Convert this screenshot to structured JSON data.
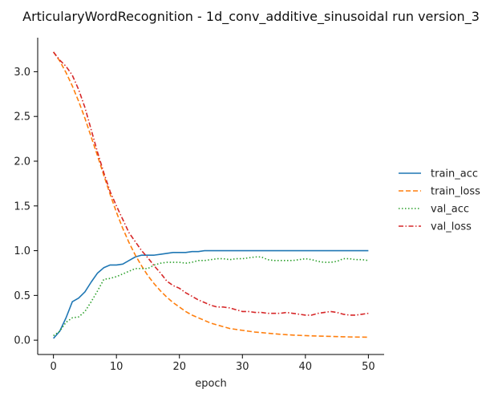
{
  "chart_data": {
    "type": "line",
    "title": "ArticularyWordRecognition - 1d_conv_additive_sinusoidal run version_3",
    "xlabel": "epoch",
    "ylabel": "",
    "xlim": [
      -2.5,
      52.5
    ],
    "ylim": [
      -0.16,
      3.38
    ],
    "x_ticks": [
      0,
      10,
      20,
      30,
      40,
      50
    ],
    "y_ticks": [
      0.0,
      0.5,
      1.0,
      1.5,
      2.0,
      2.5,
      3.0
    ],
    "grid": false,
    "legend_position": "right",
    "x": [
      0,
      1,
      2,
      3,
      4,
      5,
      6,
      7,
      8,
      9,
      10,
      11,
      12,
      13,
      14,
      15,
      16,
      17,
      18,
      19,
      20,
      21,
      22,
      23,
      24,
      25,
      26,
      27,
      28,
      29,
      30,
      31,
      32,
      33,
      34,
      35,
      36,
      37,
      38,
      39,
      40,
      41,
      42,
      43,
      44,
      45,
      46,
      47,
      48,
      49,
      50
    ],
    "series": [
      {
        "name": "train_acc",
        "color": "#1f77b4",
        "dash": "solid",
        "values": [
          0.02,
          0.1,
          0.25,
          0.43,
          0.47,
          0.54,
          0.65,
          0.75,
          0.81,
          0.84,
          0.84,
          0.85,
          0.89,
          0.93,
          0.95,
          0.95,
          0.95,
          0.96,
          0.97,
          0.98,
          0.98,
          0.98,
          0.99,
          0.99,
          1.0,
          1.0,
          1.0,
          1.0,
          1.0,
          1.0,
          1.0,
          1.0,
          1.0,
          1.0,
          1.0,
          1.0,
          1.0,
          1.0,
          1.0,
          1.0,
          1.0,
          1.0,
          1.0,
          1.0,
          1.0,
          1.0,
          1.0,
          1.0,
          1.0,
          1.0,
          1.0
        ]
      },
      {
        "name": "train_loss",
        "color": "#ff7f0e",
        "dash": "dashed",
        "values": [
          3.22,
          3.12,
          2.99,
          2.84,
          2.67,
          2.48,
          2.27,
          2.06,
          1.84,
          1.63,
          1.43,
          1.25,
          1.09,
          0.95,
          0.83,
          0.72,
          0.63,
          0.55,
          0.48,
          0.42,
          0.37,
          0.32,
          0.28,
          0.25,
          0.22,
          0.19,
          0.17,
          0.15,
          0.13,
          0.12,
          0.11,
          0.1,
          0.09,
          0.085,
          0.078,
          0.072,
          0.066,
          0.061,
          0.057,
          0.054,
          0.051,
          0.048,
          0.046,
          0.044,
          0.042,
          0.04,
          0.038,
          0.036,
          0.035,
          0.034,
          0.033
        ]
      },
      {
        "name": "val_acc",
        "color": "#2ca02c",
        "dash": "dotted",
        "values": [
          0.05,
          0.1,
          0.2,
          0.25,
          0.26,
          0.32,
          0.43,
          0.55,
          0.68,
          0.69,
          0.71,
          0.74,
          0.77,
          0.8,
          0.8,
          0.8,
          0.84,
          0.86,
          0.87,
          0.87,
          0.87,
          0.86,
          0.87,
          0.89,
          0.89,
          0.9,
          0.91,
          0.91,
          0.9,
          0.91,
          0.91,
          0.92,
          0.93,
          0.93,
          0.9,
          0.89,
          0.89,
          0.89,
          0.89,
          0.9,
          0.91,
          0.9,
          0.88,
          0.87,
          0.87,
          0.88,
          0.91,
          0.91,
          0.9,
          0.9,
          0.89
        ]
      },
      {
        "name": "val_loss",
        "color": "#d62728",
        "dash": "dashdot",
        "values": [
          3.22,
          3.13,
          3.06,
          2.96,
          2.8,
          2.6,
          2.35,
          2.1,
          1.87,
          1.66,
          1.5,
          1.35,
          1.2,
          1.1,
          1.0,
          0.92,
          0.83,
          0.75,
          0.66,
          0.61,
          0.58,
          0.53,
          0.49,
          0.45,
          0.42,
          0.39,
          0.37,
          0.37,
          0.36,
          0.34,
          0.32,
          0.32,
          0.31,
          0.31,
          0.3,
          0.3,
          0.3,
          0.31,
          0.3,
          0.29,
          0.28,
          0.28,
          0.3,
          0.31,
          0.32,
          0.31,
          0.29,
          0.28,
          0.28,
          0.29,
          0.3
        ]
      }
    ]
  }
}
